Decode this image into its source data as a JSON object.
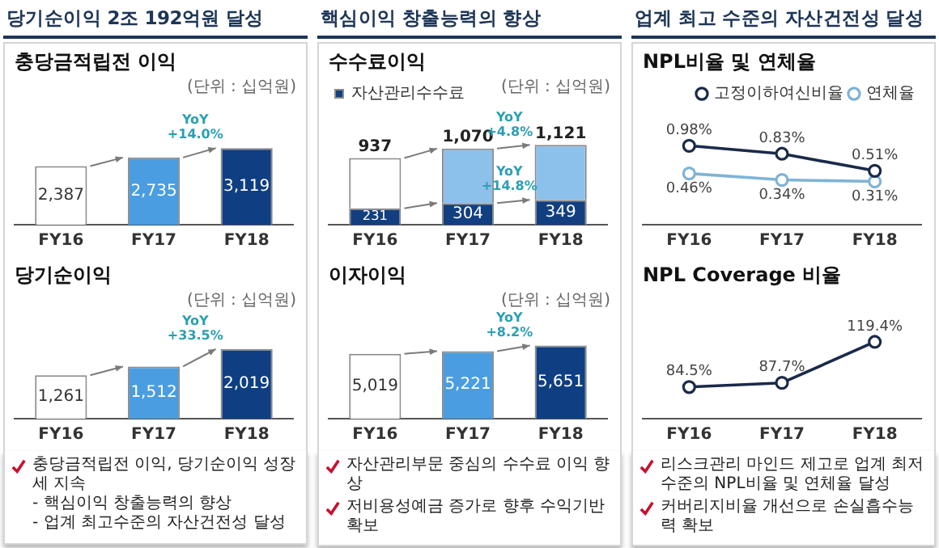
{
  "chart_data": [
    {
      "type": "bar",
      "title": "당기순이익 2조 192억원 달성",
      "subtitle": "충당금적립전 이익",
      "categories": [
        "FY16",
        "FY17",
        "FY18"
      ],
      "values": [
        2387,
        2735,
        3119
      ],
      "colors": [
        "#ffffff",
        "#4a9de0",
        "#0f3f82"
      ],
      "value_labels": [
        "2,387",
        "2,735",
        "3,119"
      ],
      "annotations": [
        "(단위 : 십억원)",
        {
          "text": "YoY\n+14.0%",
          "x": "FY18",
          "y": 3119
        }
      ]
    },
    {
      "type": "bar",
      "title": "당기순이익",
      "categories": [
        "FY16",
        "FY17",
        "FY18"
      ],
      "values": [
        1261,
        1512,
        2019
      ],
      "colors": [
        "#ffffff",
        "#4a9de0",
        "#0f3f82"
      ],
      "value_labels": [
        "1,261",
        "1,512",
        "2,019"
      ],
      "annotations": [
        "(단위 : 십억원)",
        {
          "text": "YoY\n+33.5%",
          "x": "FY18",
          "y": 2019
        }
      ]
    },
    {
      "type": "other",
      "annotations": [
        "충당금적립전 이익, 당기순이익 성장세 지속\n- 핵심이익 창출능력의 향상\n- 업계 최고수준의 자산건전성 달성"
      ]
    },
    {
      "type": "bar",
      "title": "핵심이익 창출능력의 향상",
      "subtitle": "수수료이익",
      "categories": [
        "FY16",
        "FY17",
        "FY18"
      ],
      "stacked": true,
      "legend": "top left",
      "totals": [
        "937",
        "1,070",
        "1,121"
      ],
      "series": [
        {
          "name": "자산관리수수료",
          "color": "#123f80",
          "values": [
            231,
            304,
            349
          ],
          "value_labels": [
            "231",
            "304",
            "349"
          ]
        },
        {
          "colors": [
            "#ffffff",
            "#8cc1ec",
            "#8cc1ec"
          ],
          "values": [
            706,
            766,
            772
          ]
        }
      ],
      "annotations": [
        "(단위 : 십억원)",
        {
          "text": "YoY\n+4.8%",
          "x": "FY18",
          "y": 1121
        },
        {
          "text": "YoY\n+14.8%",
          "x": "FY18",
          "y": 349
        }
      ]
    },
    {
      "type": "bar",
      "title": "이자이익",
      "categories": [
        "FY16",
        "FY17",
        "FY18"
      ],
      "values": [
        5019,
        5221,
        5651
      ],
      "colors": [
        "#ffffff",
        "#4a9de0",
        "#0f3f82"
      ],
      "value_labels": [
        "5,019",
        "5,221",
        "5,651"
      ],
      "annotations": [
        "(단위 : 십억원)",
        {
          "text": "YoY\n+8.2%",
          "x": "FY18",
          "y": 5651
        }
      ]
    },
    {
      "type": "other",
      "annotations": [
        "자산관리부문 중심의 수수료 이익 향상",
        "저비용성예금 증가로 향후 수익기반 확보"
      ]
    },
    {
      "type": "line",
      "title": "업계 최고 수준의 자산건전성 달성",
      "subtitle": "NPL비율 및 연체율",
      "categories": [
        "FY16",
        "FY17",
        "FY18"
      ],
      "marker": "circle",
      "legend": "top right",
      "series": [
        {
          "name": "고정이하여신비율",
          "color": "#1a2a4a",
          "values": [
            0.98,
            0.83,
            0.51
          ],
          "value_labels": [
            "0.98%",
            "0.83%",
            "0.51%"
          ]
        },
        {
          "name": "연체율",
          "color": "#7fb3d5",
          "values": [
            0.46,
            0.34,
            0.31
          ],
          "value_labels": [
            "0.46%",
            "0.34%",
            "0.31%"
          ]
        }
      ]
    },
    {
      "type": "line",
      "title": "NPL Coverage 비율",
      "categories": [
        "FY16",
        "FY17",
        "FY18"
      ],
      "marker": "circle",
      "series": [
        {
          "color": "#1a2a4a",
          "values": [
            84.5,
            87.7,
            119.4
          ],
          "value_labels": [
            "84.5%",
            "87.7%",
            "119.4%"
          ]
        }
      ]
    },
    {
      "type": "other",
      "annotations": [
        "리스크관리 마인드 제고로 업계 최저 수준의 NPL비율 및 연체율 달성",
        "커버리지비율 개선으로 손실흡수능력 확보"
      ]
    }
  ]
}
